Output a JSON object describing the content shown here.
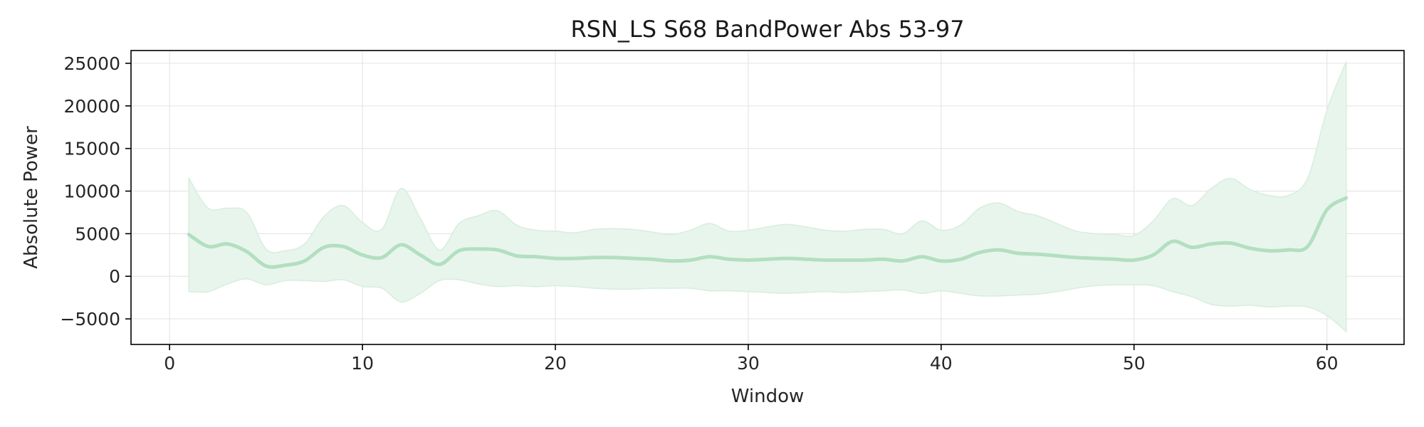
{
  "chart_data": {
    "type": "line",
    "title": "RSN_LS S68 BandPower Abs 53-97",
    "xlabel": "Window",
    "ylabel": "Absolute Power",
    "xlim": [
      -2,
      64
    ],
    "ylim": [
      -8000,
      26500
    ],
    "x_ticks": [
      0,
      10,
      20,
      30,
      40,
      50,
      60
    ],
    "x_tick_labels": [
      "0",
      "10",
      "20",
      "30",
      "40",
      "50",
      "60"
    ],
    "y_ticks": [
      -5000,
      0,
      5000,
      10000,
      15000,
      20000,
      25000
    ],
    "y_tick_labels": [
      "−5000",
      "0",
      "5000",
      "10000",
      "15000",
      "20000",
      "25000"
    ],
    "grid": true,
    "legend": "none",
    "colors": {
      "line": "#b2dfc0",
      "band_fill": "#e8f5ec",
      "band_edge": "#d6eedd",
      "grid": "#e6e6e6",
      "axis": "#000000"
    },
    "series": [
      {
        "type": "line",
        "x": [
          1,
          2,
          3,
          4,
          5,
          6,
          7,
          8,
          9,
          10,
          11,
          12,
          13,
          14,
          15,
          16,
          17,
          18,
          19,
          20,
          21,
          22,
          23,
          24,
          25,
          26,
          27,
          28,
          29,
          30,
          31,
          32,
          33,
          34,
          35,
          36,
          37,
          38,
          39,
          40,
          41,
          42,
          43,
          44,
          45,
          46,
          47,
          48,
          49,
          50,
          51,
          52,
          53,
          54,
          55,
          56,
          57,
          58,
          59,
          60,
          61
        ],
        "y": [
          4900,
          3500,
          3800,
          2900,
          1200,
          1300,
          1800,
          3400,
          3500,
          2500,
          2200,
          3700,
          2500,
          1400,
          3000,
          3200,
          3100,
          2400,
          2300,
          2100,
          2100,
          2200,
          2200,
          2100,
          2000,
          1800,
          1900,
          2300,
          2000,
          1900,
          2000,
          2100,
          2000,
          1900,
          1900,
          1900,
          2000,
          1800,
          2300,
          1800,
          2000,
          2800,
          3100,
          2700,
          2600,
          2400,
          2200,
          2100,
          2000,
          1900,
          2500,
          4100,
          3400,
          3800,
          3900,
          3300,
          3000,
          3100,
          3500,
          7800,
          9200
        ]
      },
      {
        "type": "band",
        "x": [
          1,
          2,
          3,
          4,
          5,
          6,
          7,
          8,
          9,
          10,
          11,
          12,
          13,
          14,
          15,
          16,
          17,
          18,
          19,
          20,
          21,
          22,
          23,
          24,
          25,
          26,
          27,
          28,
          29,
          30,
          31,
          32,
          33,
          34,
          35,
          36,
          37,
          38,
          39,
          40,
          41,
          42,
          43,
          44,
          45,
          46,
          47,
          48,
          49,
          50,
          51,
          52,
          53,
          54,
          55,
          56,
          57,
          58,
          59,
          60,
          61
        ],
        "upper": [
          11500,
          8000,
          8000,
          7500,
          3200,
          3000,
          3800,
          7000,
          8300,
          6300,
          5500,
          10300,
          6800,
          3100,
          6200,
          7100,
          7700,
          6000,
          5400,
          5300,
          5100,
          5500,
          5600,
          5500,
          5200,
          4900,
          5400,
          6200,
          5300,
          5400,
          5800,
          6100,
          5800,
          5400,
          5300,
          5500,
          5500,
          5000,
          6500,
          5400,
          6000,
          8000,
          8600,
          7600,
          7100,
          6200,
          5300,
          5000,
          4900,
          4800,
          6500,
          9100,
          8300,
          10300,
          11500,
          10200,
          9500,
          9500,
          11500,
          19500,
          25200
        ],
        "lower": [
          -1800,
          -1800,
          -900,
          -300,
          -1000,
          -500,
          -500,
          -600,
          -400,
          -1200,
          -1400,
          -3000,
          -2000,
          -500,
          -400,
          -900,
          -1200,
          -1100,
          -1200,
          -1100,
          -1200,
          -1400,
          -1500,
          -1500,
          -1400,
          -1400,
          -1400,
          -1700,
          -1700,
          -1800,
          -1900,
          -2000,
          -1900,
          -1800,
          -1900,
          -1800,
          -1700,
          -1600,
          -2000,
          -1700,
          -2000,
          -2300,
          -2300,
          -2200,
          -2100,
          -1800,
          -1400,
          -1100,
          -1000,
          -1000,
          -1100,
          -1800,
          -2400,
          -3300,
          -3500,
          -3400,
          -3600,
          -3500,
          -3600,
          -4600,
          -6500
        ]
      }
    ]
  }
}
